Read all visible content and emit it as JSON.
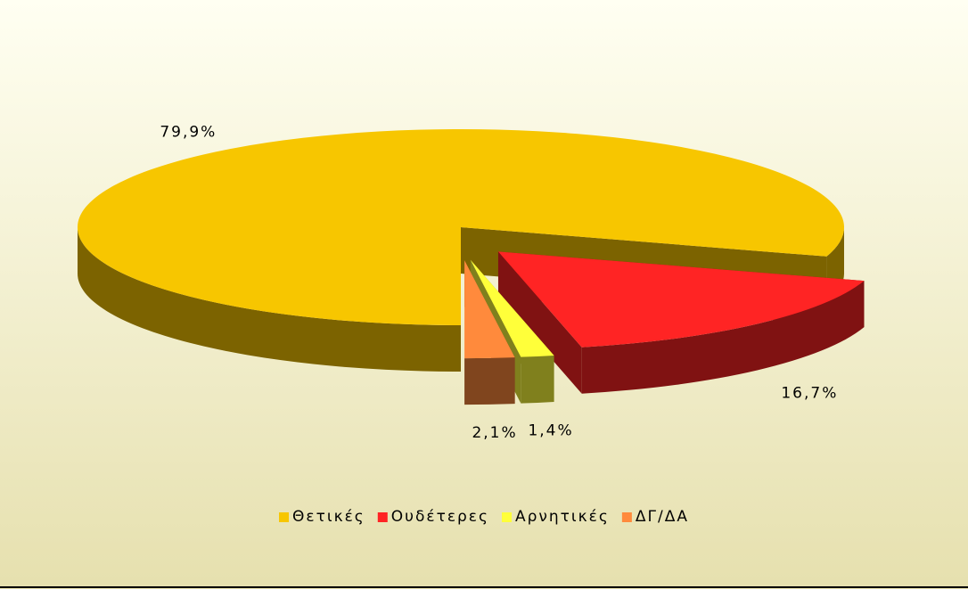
{
  "chart_data": {
    "type": "pie3d",
    "categories": [
      "Θετικές",
      "Ουδέτερες",
      "Αρνητικές",
      "ΔΓ/ΔΑ"
    ],
    "values": [
      79.9,
      16.7,
      1.4,
      2.1
    ],
    "value_labels": [
      "79,9%",
      "16,7%",
      "1,4%",
      "2,1%"
    ],
    "colors": [
      "#f7c600",
      "#ff2424",
      "#ffff3a",
      "#ff8a3c"
    ],
    "legend": "bottom"
  }
}
